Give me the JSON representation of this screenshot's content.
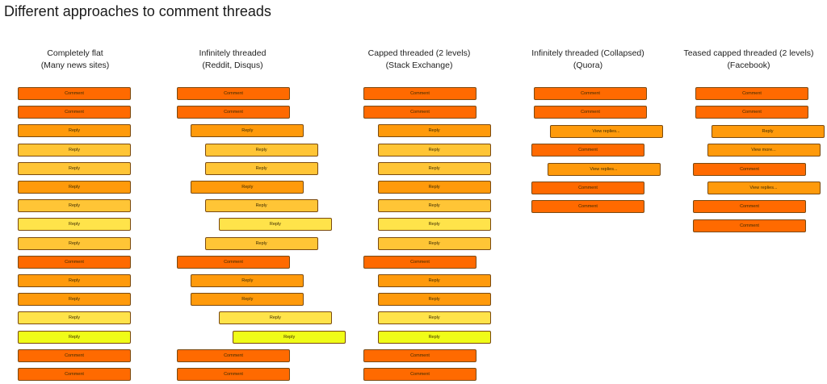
{
  "title": "Different approaches to comment threads",
  "colors": {
    "comment": "#ff6a00",
    "level1": "#ff9a0b",
    "level2": "#ffc536",
    "level3": "#ffe34a",
    "level4": "#f0fc18",
    "border": "#7a4a10"
  },
  "columns": [
    {
      "heading": "Completely flat",
      "subheading": "(Many news sites)",
      "items": [
        {
          "label": "Comment",
          "level": 0
        },
        {
          "label": "Comment",
          "level": 0
        },
        {
          "label": "Reply",
          "level": 1
        },
        {
          "label": "Reply",
          "level": 2
        },
        {
          "label": "Reply",
          "level": 2
        },
        {
          "label": "Reply",
          "level": 1
        },
        {
          "label": "Reply",
          "level": 2
        },
        {
          "label": "Reply",
          "level": 3
        },
        {
          "label": "Reply",
          "level": 2
        },
        {
          "label": "Comment",
          "level": 0
        },
        {
          "label": "Reply",
          "level": 1
        },
        {
          "label": "Reply",
          "level": 1
        },
        {
          "label": "Reply",
          "level": 3
        },
        {
          "label": "Reply",
          "level": 4
        },
        {
          "label": "Comment",
          "level": 0
        },
        {
          "label": "Comment",
          "level": 0
        }
      ]
    },
    {
      "heading": "Infinitely threaded",
      "subheading": "(Reddit, Disqus)",
      "items": [
        {
          "label": "Comment",
          "level": 0,
          "indent": 0
        },
        {
          "label": "Comment",
          "level": 0,
          "indent": 0
        },
        {
          "label": "Reply",
          "level": 1,
          "indent": 1
        },
        {
          "label": "Reply",
          "level": 2,
          "indent": 2
        },
        {
          "label": "Reply",
          "level": 2,
          "indent": 2
        },
        {
          "label": "Reply",
          "level": 1,
          "indent": 1
        },
        {
          "label": "Reply",
          "level": 2,
          "indent": 2
        },
        {
          "label": "Reply",
          "level": 3,
          "indent": 3
        },
        {
          "label": "Reply",
          "level": 2,
          "indent": 2
        },
        {
          "label": "Comment",
          "level": 0,
          "indent": 0
        },
        {
          "label": "Reply",
          "level": 1,
          "indent": 1
        },
        {
          "label": "Reply",
          "level": 1,
          "indent": 1
        },
        {
          "label": "Reply",
          "level": 3,
          "indent": 3
        },
        {
          "label": "Reply",
          "level": 4,
          "indent": 4
        },
        {
          "label": "Comment",
          "level": 0,
          "indent": 0
        },
        {
          "label": "Comment",
          "level": 0,
          "indent": 0
        }
      ]
    },
    {
      "heading": "Capped threaded (2 levels)",
      "subheading": "(Stack Exchange)",
      "items": [
        {
          "label": "Comment",
          "level": 0,
          "indent": 0
        },
        {
          "label": "Comment",
          "level": 0,
          "indent": 0
        },
        {
          "label": "Reply",
          "level": 1,
          "indent": 1
        },
        {
          "label": "Reply",
          "level": 2,
          "indent": 1
        },
        {
          "label": "Reply",
          "level": 2,
          "indent": 1
        },
        {
          "label": "Reply",
          "level": 1,
          "indent": 1
        },
        {
          "label": "Reply",
          "level": 2,
          "indent": 1
        },
        {
          "label": "Reply",
          "level": 3,
          "indent": 1
        },
        {
          "label": "Reply",
          "level": 2,
          "indent": 1
        },
        {
          "label": "Comment",
          "level": 0,
          "indent": 0
        },
        {
          "label": "Reply",
          "level": 1,
          "indent": 1
        },
        {
          "label": "Reply",
          "level": 1,
          "indent": 1
        },
        {
          "label": "Reply",
          "level": 3,
          "indent": 1
        },
        {
          "label": "Reply",
          "level": 4,
          "indent": 1
        },
        {
          "label": "Comment",
          "level": 0,
          "indent": 0
        },
        {
          "label": "Comment",
          "level": 0,
          "indent": 0
        }
      ]
    },
    {
      "heading": "Infinitely threaded (Collapsed)",
      "subheading": "(Quora)",
      "items": [
        {
          "label": "Comment",
          "level": 0,
          "indent": 0
        },
        {
          "label": "Comment",
          "level": 0,
          "indent": 0
        },
        {
          "label": "View replies...",
          "level": 1,
          "indent": 1
        },
        {
          "label": "Comment",
          "level": 0,
          "indent": 0
        },
        {
          "label": "View replies...",
          "level": 1,
          "indent": 1
        },
        {
          "label": "Comment",
          "level": 0,
          "indent": 0
        },
        {
          "label": "Comment",
          "level": 0,
          "indent": 0
        }
      ]
    },
    {
      "heading": "Teased capped threaded (2 levels)",
      "subheading": "(Facebook)",
      "items": [
        {
          "label": "Comment",
          "level": 0,
          "indent": 0
        },
        {
          "label": "Comment",
          "level": 0,
          "indent": 0
        },
        {
          "label": "Reply",
          "level": 1,
          "indent": 1
        },
        {
          "label": "View more...",
          "level": 1,
          "indent": 1
        },
        {
          "label": "Comment",
          "level": 0,
          "indent": 0
        },
        {
          "label": "View replies...",
          "level": 1,
          "indent": 1
        },
        {
          "label": "Comment",
          "level": 0,
          "indent": 0
        },
        {
          "label": "Comment",
          "level": 0,
          "indent": 0
        }
      ]
    }
  ]
}
